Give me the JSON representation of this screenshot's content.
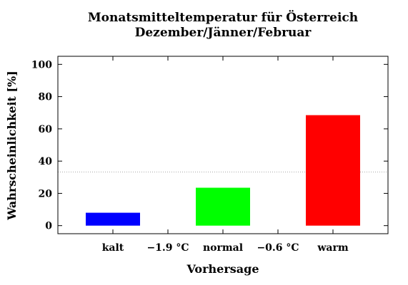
{
  "chart_data": {
    "type": "bar",
    "title": "Monatsmitteltemperatur für Österreich",
    "subtitle": "Dezember/Jänner/Februar",
    "xlabel": "Vorhersage",
    "ylabel": "Wahrscheinlichkeit [%]",
    "categories": [
      "kalt",
      "normal",
      "warm"
    ],
    "values": [
      8,
      23.5,
      68.5
    ],
    "colors": [
      "#0000ff",
      "#00ff00",
      "#ff0000"
    ],
    "thresholds": [
      "−1.9 °C",
      "−0.6 °C"
    ],
    "reference_line": 33.3,
    "ylim": [
      -5,
      105
    ],
    "yticks": [
      0,
      20,
      40,
      60,
      80,
      100
    ],
    "grid": false,
    "legend": "none"
  }
}
